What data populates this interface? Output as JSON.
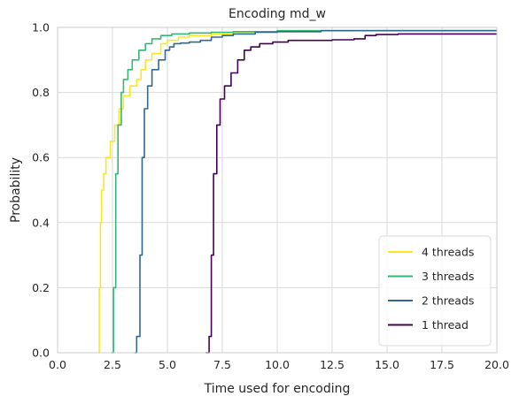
{
  "chart_data": {
    "type": "line",
    "title": "Encoding md_w",
    "xlabel": "Time used for encoding",
    "ylabel": "Probability",
    "xlim": [
      0,
      20
    ],
    "ylim": [
      0,
      1
    ],
    "xticks": [
      0,
      2.5,
      5,
      7.5,
      10,
      12.5,
      15,
      17.5,
      20
    ],
    "xtick_labels": [
      "0.0",
      "2.5",
      "5.0",
      "7.5",
      "10.0",
      "12.5",
      "15.0",
      "17.5",
      "20.0"
    ],
    "yticks": [
      0,
      0.2,
      0.4,
      0.6,
      0.8,
      1.0
    ],
    "ytick_labels": [
      "0.0",
      "0.2",
      "0.4",
      "0.6",
      "0.8",
      "1.0"
    ],
    "grid": true,
    "legend_position": "bottom-right",
    "series": [
      {
        "name": "4 threads",
        "color": "#fde725",
        "x": [
          1.85,
          1.9,
          1.95,
          2.0,
          2.1,
          2.2,
          2.4,
          2.6,
          2.8,
          3.0,
          3.3,
          3.6,
          3.8,
          4.0,
          4.3,
          4.7,
          5.0,
          5.5,
          6.0,
          7.0,
          8.0,
          10.0,
          12.0,
          14.0,
          20.0
        ],
        "y": [
          0.0,
          0.2,
          0.4,
          0.5,
          0.55,
          0.6,
          0.65,
          0.7,
          0.75,
          0.79,
          0.82,
          0.84,
          0.87,
          0.9,
          0.92,
          0.95,
          0.96,
          0.97,
          0.975,
          0.98,
          0.985,
          0.987,
          0.99,
          0.99,
          0.99
        ]
      },
      {
        "name": "3 threads",
        "color": "#35b779",
        "x": [
          2.45,
          2.55,
          2.65,
          2.75,
          2.9,
          3.0,
          3.2,
          3.4,
          3.7,
          4.0,
          4.3,
          4.7,
          5.2,
          6.0,
          7.0,
          8.0,
          10.0,
          12.0,
          20.0
        ],
        "y": [
          0.0,
          0.2,
          0.55,
          0.7,
          0.8,
          0.84,
          0.87,
          0.9,
          0.93,
          0.95,
          0.965,
          0.975,
          0.98,
          0.983,
          0.985,
          0.987,
          0.99,
          0.99,
          0.99
        ]
      },
      {
        "name": "2 threads",
        "color": "#31688e",
        "x": [
          3.5,
          3.6,
          3.75,
          3.85,
          3.95,
          4.1,
          4.3,
          4.6,
          4.9,
          5.1,
          5.3,
          5.6,
          6.0,
          6.5,
          7.0,
          7.5,
          8.0,
          9.0,
          10.0,
          12.0,
          14.0,
          20.0
        ],
        "y": [
          0.0,
          0.05,
          0.3,
          0.6,
          0.75,
          0.82,
          0.87,
          0.9,
          0.93,
          0.94,
          0.95,
          0.952,
          0.955,
          0.96,
          0.97,
          0.975,
          0.98,
          0.985,
          0.987,
          0.99,
          0.99,
          0.99
        ]
      },
      {
        "name": "1 thread",
        "color": "#440154",
        "x": [
          6.75,
          6.9,
          7.0,
          7.1,
          7.25,
          7.4,
          7.6,
          7.9,
          8.2,
          8.5,
          8.8,
          9.2,
          9.8,
          10.5,
          11.5,
          12.5,
          13.5,
          14.0,
          14.5,
          15.5,
          17.5,
          20.0
        ],
        "y": [
          0.0,
          0.05,
          0.3,
          0.55,
          0.7,
          0.78,
          0.82,
          0.86,
          0.9,
          0.93,
          0.94,
          0.95,
          0.955,
          0.96,
          0.96,
          0.962,
          0.965,
          0.975,
          0.978,
          0.98,
          0.98,
          0.98
        ]
      }
    ]
  }
}
